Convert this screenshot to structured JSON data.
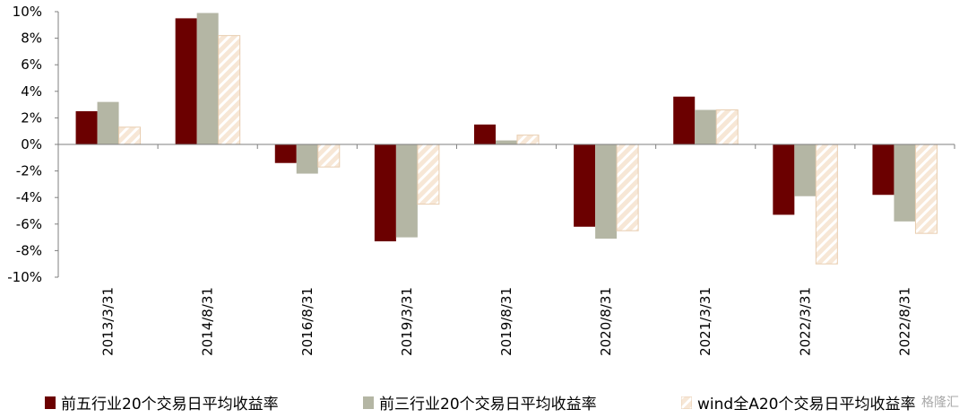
{
  "chart_data": {
    "type": "bar",
    "categories": [
      "2013/3/31",
      "2014/8/31",
      "2016/8/31",
      "2019/3/31",
      "2019/8/31",
      "2020/8/31",
      "2021/3/31",
      "2022/3/31",
      "2022/8/31"
    ],
    "series": [
      {
        "name": "前五行业20个交易日平均收益率",
        "color": "#6b0000",
        "values": [
          2.5,
          9.5,
          -1.4,
          -7.3,
          1.5,
          -6.2,
          3.6,
          -5.3,
          -3.8
        ]
      },
      {
        "name": "前三行业20个交易日平均收益率",
        "color": "#b4b6a4",
        "values": [
          3.2,
          9.9,
          -2.2,
          -7.0,
          0.3,
          -7.1,
          2.6,
          -3.9,
          -5.8
        ]
      },
      {
        "name": "wind全A20个交易日平均收益率",
        "color": "#f3dcc4",
        "pattern": "hatched",
        "values": [
          1.3,
          8.2,
          -1.7,
          -4.5,
          0.7,
          -6.5,
          2.6,
          -9.0,
          -6.7
        ]
      }
    ],
    "ylim": [
      -10,
      10
    ],
    "yticks": [
      "10%",
      "8%",
      "6%",
      "4%",
      "2%",
      "0%",
      "-2%",
      "-4%",
      "-6%",
      "-8%",
      "-10%"
    ],
    "legend_position": "bottom"
  },
  "watermark": "格隆汇"
}
